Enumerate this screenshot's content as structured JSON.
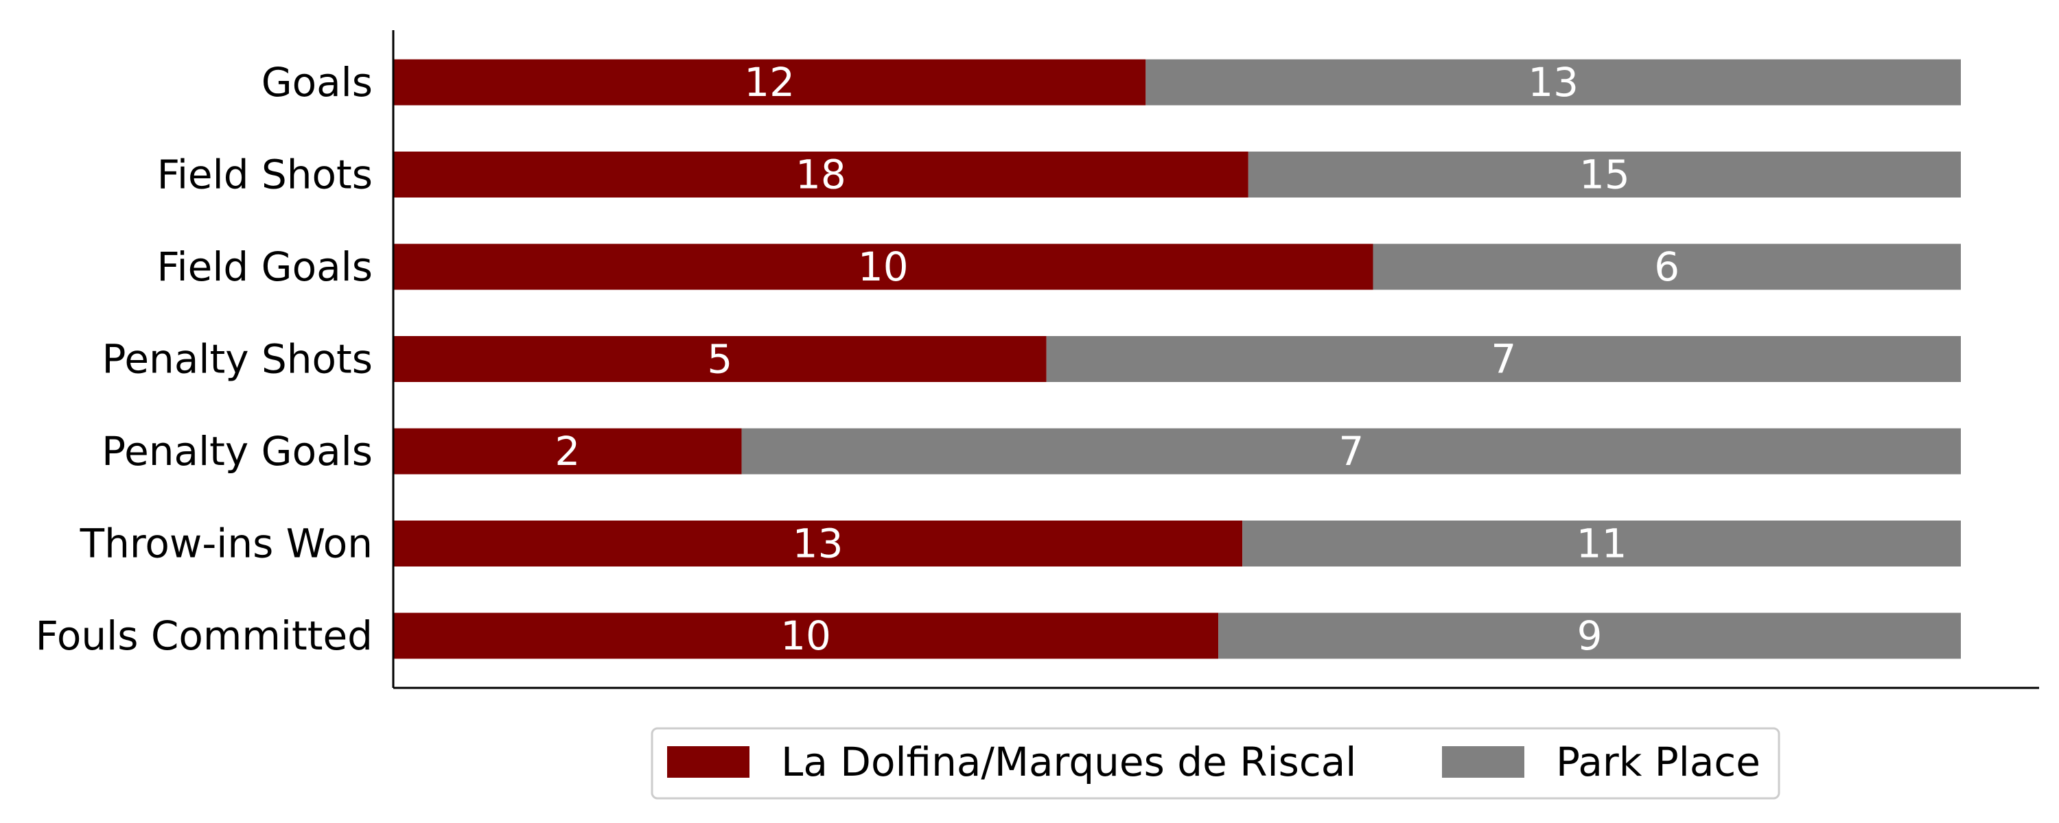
{
  "chart_data": {
    "type": "bar",
    "orientation": "horizontal",
    "stacked": true,
    "normalized": true,
    "categories": [
      "Goals",
      "Field Shots",
      "Field Goals",
      "Penalty Shots",
      "Penalty Goals",
      "Throw-ins Won",
      "Fouls Committed"
    ],
    "series": [
      {
        "name": "La Dolfina/Marques de Riscal",
        "color": "#800000",
        "values": [
          12,
          18,
          10,
          5,
          2,
          13,
          10
        ]
      },
      {
        "name": "Park Place",
        "color": "#808080",
        "values": [
          13,
          15,
          6,
          7,
          7,
          11,
          9
        ]
      }
    ],
    "title": "",
    "xlabel": "",
    "ylabel": "",
    "legend_position": "bottom-center",
    "grid": false
  }
}
